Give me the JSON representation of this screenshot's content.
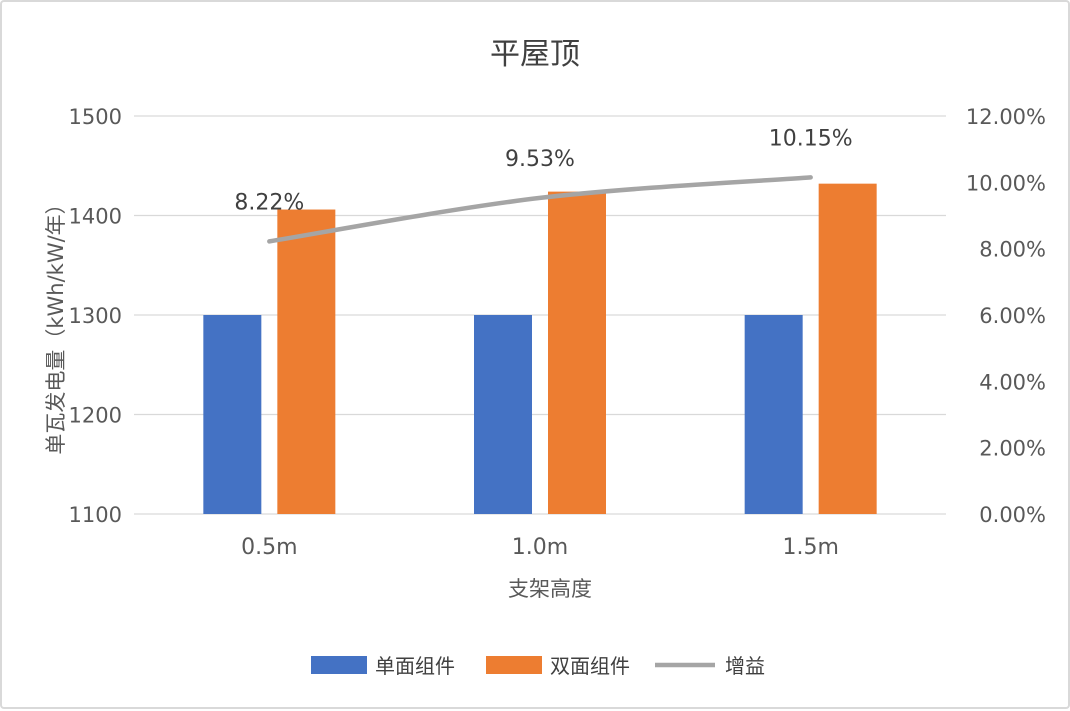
{
  "chart_data": {
    "type": "bar",
    "title": "平屋顶",
    "xlabel": "支架高度",
    "ylabel": "单瓦发电量（kWh/kW/年）",
    "categories": [
      "0.5m",
      "1.0m",
      "1.5m"
    ],
    "ylim": [
      1100,
      1500
    ],
    "yticks": [
      "1500",
      "1400",
      "1300",
      "1200",
      "1100"
    ],
    "y2lim": [
      0,
      0.12
    ],
    "y2ticks": [
      "12.00%",
      "10.00%",
      "8.00%",
      "6.00%",
      "4.00%",
      "2.00%",
      "0.00%"
    ],
    "grid": true,
    "legend_position": "bottom",
    "series": [
      {
        "name": "单面组件",
        "type": "bar",
        "axis": "left",
        "color": "#4472c4",
        "values": [
          1300,
          1300,
          1300
        ]
      },
      {
        "name": "双面组件",
        "type": "bar",
        "axis": "left",
        "color": "#ed7d31",
        "values": [
          1406,
          1424,
          1432
        ]
      },
      {
        "name": "增益",
        "type": "line",
        "axis": "right",
        "color": "#a5a5a5",
        "values": [
          0.0822,
          0.0953,
          0.1015
        ],
        "labels": [
          "8.22%",
          "9.53%",
          "10.15%"
        ]
      }
    ]
  }
}
